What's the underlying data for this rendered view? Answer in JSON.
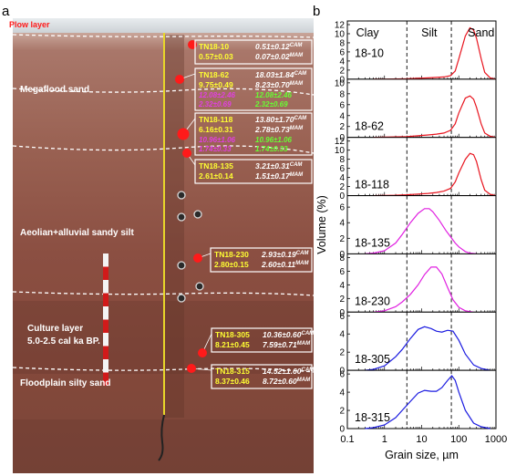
{
  "figure": {
    "panel_a_label": "a",
    "panel_b_label": "b",
    "colors": {
      "red": "#e8141e",
      "magenta": "#e020e0",
      "blue": "#1a1ae0",
      "label_yellow": "#ffff33",
      "label_white": "#ffffff",
      "label_green": "#66ff33",
      "label_purple": "#e040e0",
      "soil_top": "#a9776a",
      "soil_mid": "#8b4f42",
      "soil_bottom": "#7a4538"
    }
  },
  "photo": {
    "layers": [
      {
        "text": "Plow layer",
        "color": "#ff1a1a"
      },
      {
        "text": "Megaflood sand",
        "color": "#ffffff"
      },
      {
        "text": "Aeolian+alluvial sandy silt",
        "color": "#ffffff"
      },
      {
        "text": "Culture layer",
        "color": "#ffffff"
      },
      {
        "text": "5.0-2.5 cal ka BP.",
        "color": "#ffffff"
      },
      {
        "text": "Floodplain silty sand",
        "color": "#ffffff"
      }
    ],
    "samples": [
      {
        "id": "TN18-10",
        "age": "0.57±0.03",
        "cam": "0.51±0.12",
        "mam": "0.07±0.02",
        "extra": null
      },
      {
        "id": "TN18-62",
        "age": "9.75±0.49",
        "cam": "18.03±1.84",
        "mam": "8.23±0.70",
        "extra": [
          "12.08±2.46",
          "2.32±0.69"
        ]
      },
      {
        "id": "TN18-118",
        "age": "6.16±0.31",
        "cam": "13.80±1.70",
        "mam": "2.78±0.73",
        "extra": [
          "10.96±1.06",
          "1.74±0.33"
        ]
      },
      {
        "id": "TN18-135",
        "age": "2.61±0.14",
        "cam": "3.21±0.31",
        "mam": "1.51±0.17",
        "extra": null
      },
      {
        "id": "TN18-230",
        "age": "2.80±0.15",
        "cam": "2.93±0.19",
        "mam": "2.60±0.11",
        "extra": null
      },
      {
        "id": "TN18-305",
        "age": "8.21±0.45",
        "cam": "10.36±0.60",
        "mam": "7.59±0.71",
        "extra": null
      },
      {
        "id": "TN18-315",
        "age": "8.37±0.46",
        "cam": "14.52±1.60",
        "mam": "8.72±0.60",
        "extra": null
      }
    ],
    "cam_sup": "CAM",
    "mam_sup": "MAM"
  },
  "chart_data": {
    "type": "line",
    "title": "",
    "xlabel": "Grain size, µm",
    "ylabel": "Volume (%)",
    "x_scale": "log",
    "xlim": [
      0.1,
      1000
    ],
    "x_ticks": [
      "0.1",
      "1",
      "10",
      "100",
      "1000"
    ],
    "zone_labels": [
      "Clay",
      "Silt",
      "Sand"
    ],
    "zone_boundaries_um": [
      4,
      63
    ],
    "panels": [
      {
        "name": "18-10",
        "color": "#e8141e",
        "ylim": [
          0,
          12
        ],
        "yticks": [
          0,
          2,
          4,
          6,
          8,
          10,
          12
        ],
        "x": [
          0.5,
          1,
          2,
          4,
          8,
          15,
          25,
          40,
          60,
          80,
          100,
          150,
          200,
          250,
          300,
          400,
          500,
          700,
          1000
        ],
        "y": [
          0,
          0,
          0.05,
          0.1,
          0.2,
          0.3,
          0.4,
          0.5,
          0.8,
          1.8,
          4.5,
          9.5,
          11.3,
          10.8,
          9,
          4.5,
          1.5,
          0.3,
          0
        ]
      },
      {
        "name": "18-62",
        "color": "#e8141e",
        "ylim": [
          0,
          10
        ],
        "yticks": [
          0,
          2,
          4,
          6,
          8,
          10
        ],
        "x": [
          0.5,
          1,
          2,
          4,
          8,
          15,
          25,
          40,
          60,
          80,
          100,
          150,
          200,
          250,
          300,
          400,
          500,
          700,
          1000
        ],
        "y": [
          0,
          0.05,
          0.1,
          0.15,
          0.3,
          0.45,
          0.6,
          0.8,
          1.3,
          2.5,
          4.5,
          7.2,
          7.6,
          7,
          5.5,
          2.5,
          0.8,
          0.2,
          0
        ]
      },
      {
        "name": "18-118",
        "color": "#e8141e",
        "ylim": [
          0,
          12
        ],
        "yticks": [
          0,
          2,
          4,
          6,
          8,
          10,
          12
        ],
        "x": [
          0.5,
          1,
          2,
          4,
          8,
          15,
          25,
          40,
          60,
          80,
          100,
          150,
          200,
          250,
          300,
          400,
          500,
          700,
          1000
        ],
        "y": [
          0,
          0.05,
          0.1,
          0.2,
          0.35,
          0.5,
          0.7,
          1.0,
          1.6,
          3,
          5,
          8,
          9.3,
          9,
          7.5,
          3.5,
          1.2,
          0.3,
          0
        ]
      },
      {
        "name": "18-135",
        "color": "#e020e0",
        "ylim": [
          0,
          7
        ],
        "yticks": [
          0,
          2,
          4,
          6
        ],
        "x": [
          0.3,
          0.5,
          1,
          2,
          3,
          5,
          8,
          12,
          16,
          20,
          30,
          45,
          60,
          80,
          100,
          150,
          200,
          300
        ],
        "y": [
          0,
          0.1,
          0.4,
          1.4,
          2.5,
          4.0,
          5.2,
          5.8,
          5.8,
          5.4,
          4.3,
          3.0,
          2.2,
          1.4,
          0.9,
          0.3,
          0.1,
          0
        ]
      },
      {
        "name": "18-230",
        "color": "#e020e0",
        "ylim": [
          0,
          8
        ],
        "yticks": [
          0,
          2,
          4,
          6,
          8
        ],
        "x": [
          0.5,
          1,
          2,
          3,
          5,
          8,
          12,
          18,
          25,
          35,
          50,
          70,
          100,
          150,
          250
        ],
        "y": [
          0,
          0.2,
          0.8,
          1.5,
          2.6,
          4.0,
          5.5,
          6.6,
          6.6,
          5.6,
          3.6,
          1.8,
          0.7,
          0.2,
          0
        ]
      },
      {
        "name": "18-305",
        "color": "#1a1ae0",
        "ylim": [
          0,
          6
        ],
        "yticks": [
          0,
          2,
          4,
          6
        ],
        "x": [
          0.3,
          0.5,
          1,
          2,
          3,
          5,
          8,
          12,
          18,
          25,
          35,
          50,
          70,
          100,
          150,
          250,
          400,
          700
        ],
        "y": [
          0,
          0.1,
          0.5,
          1.5,
          2.3,
          3.5,
          4.5,
          4.8,
          4.6,
          4.3,
          4.2,
          4.4,
          4.3,
          3.3,
          1.8,
          0.6,
          0.2,
          0
        ]
      },
      {
        "name": "18-315",
        "color": "#1a1ae0",
        "ylim": [
          0,
          6
        ],
        "yticks": [
          0,
          2,
          4,
          6
        ],
        "x": [
          0.3,
          0.5,
          1,
          2,
          3,
          5,
          8,
          12,
          18,
          25,
          35,
          50,
          65,
          80,
          100,
          150,
          250,
          400,
          700
        ],
        "y": [
          0,
          0.1,
          0.4,
          1.2,
          2.0,
          3.0,
          3.9,
          4.2,
          4.1,
          4.1,
          4.5,
          5.3,
          5.8,
          5.3,
          4.0,
          2.0,
          0.6,
          0.2,
          0
        ]
      }
    ]
  }
}
